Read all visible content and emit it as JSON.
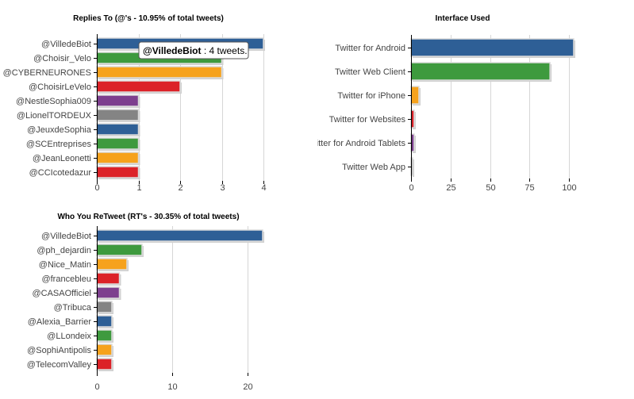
{
  "chart_data": [
    {
      "type": "bar",
      "orientation": "horizontal",
      "title": "Replies To (@'s - 10.95% of total tweets)",
      "categories": [
        "@VilledeBiot",
        "@Choisir_Velo",
        "@CYBERNEURONES",
        "@ChoisirLeVelo",
        "@NestleSophia009",
        "@LionelTORDEUX",
        "@JeuxdeSophia",
        "@SCEntreprises",
        "@JeanLeonetti",
        "@CCIcotedazur"
      ],
      "values": [
        4,
        3,
        3,
        2,
        1,
        1,
        1,
        1,
        1,
        1
      ],
      "colors": [
        "#2e5f96",
        "#3e9a3e",
        "#f6a21c",
        "#dc2228",
        "#7d3f8e",
        "#848484",
        "#2e5f96",
        "#3e9a3e",
        "#f6a21c",
        "#dc2228"
      ],
      "xticks": [
        0,
        1,
        2,
        3,
        4
      ],
      "xlim": [
        0,
        4
      ],
      "grid": true,
      "tooltip": {
        "category": "@VilledeBiot",
        "text": " : 4 tweets."
      }
    },
    {
      "type": "bar",
      "orientation": "horizontal",
      "title": "Interface Used",
      "categories": [
        "Twitter for Android",
        "Twitter Web Client",
        "Twitter for iPhone",
        "Twitter for Websites",
        "Twitter for Android Tablets",
        "Twitter Web App"
      ],
      "values": [
        103,
        88,
        5,
        2,
        2,
        1
      ],
      "colors": [
        "#2e5f96",
        "#3e9a3e",
        "#f6a21c",
        "#dc2228",
        "#7d3f8e",
        "#848484"
      ],
      "xticks": [
        0,
        25,
        50,
        75,
        100
      ],
      "xlim": [
        0,
        103
      ],
      "grid": true
    },
    {
      "type": "bar",
      "orientation": "horizontal",
      "title": "Who You ReTweet (RT's - 30.35% of total tweets)",
      "categories": [
        "@VilledeBiot",
        "@ph_dejardin",
        "@Nice_Matin",
        "@francebleu",
        "@CASAOfficiel",
        "@Tribuca",
        "@Alexia_Barrier",
        "@LLondeix",
        "@SophiAntipolis",
        "@TelecomValley"
      ],
      "values": [
        22,
        6,
        4,
        3,
        3,
        2,
        2,
        2,
        2,
        2
      ],
      "colors": [
        "#2e5f96",
        "#3e9a3e",
        "#f6a21c",
        "#dc2228",
        "#7d3f8e",
        "#848484",
        "#2e5f96",
        "#3e9a3e",
        "#f6a21c",
        "#dc2228"
      ],
      "xticks": [
        0,
        10,
        20
      ],
      "xlim": [
        0,
        22
      ],
      "grid": true
    }
  ]
}
